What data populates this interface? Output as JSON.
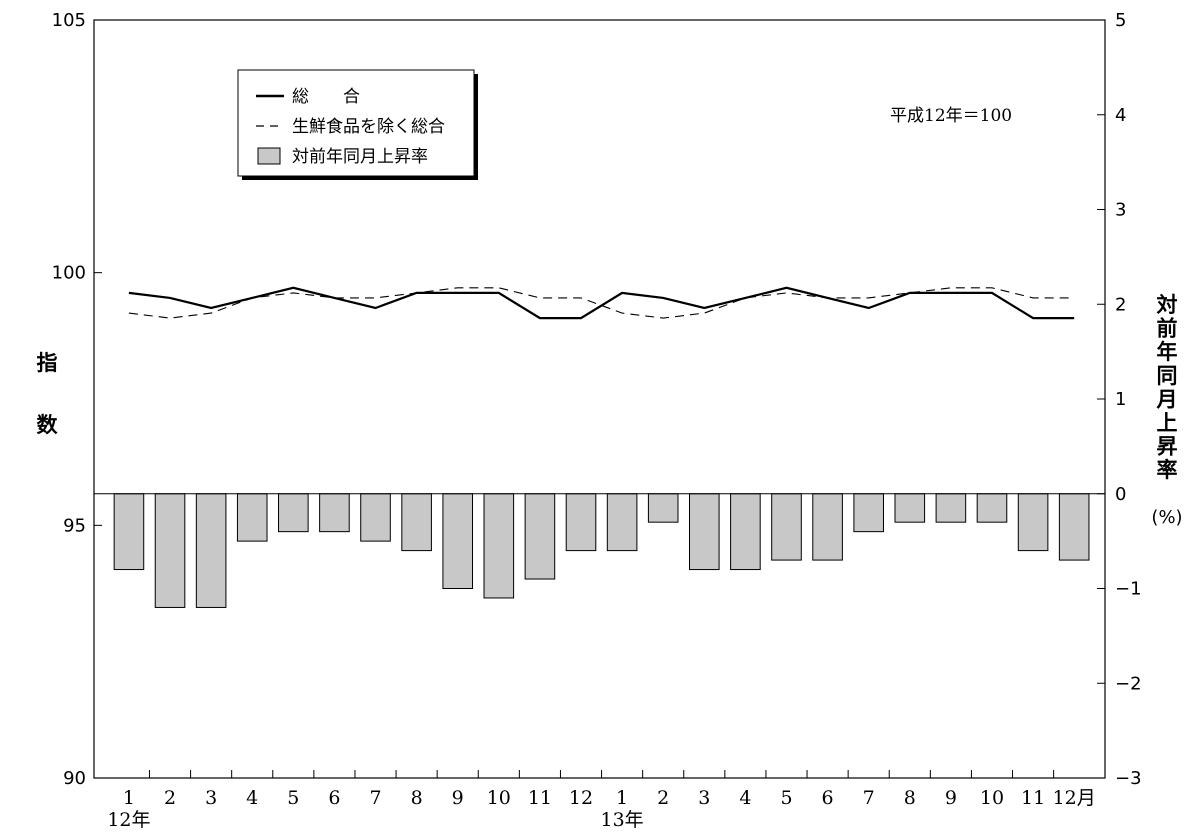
{
  "chart_data": {
    "type": "line+bar",
    "left_axis": {
      "label_chars": [
        "指",
        "数"
      ],
      "ylim": [
        90,
        105
      ],
      "ticks": [
        90,
        95,
        100,
        105
      ]
    },
    "right_axis": {
      "label_chars": [
        "対",
        "前",
        "年",
        "同",
        "月",
        "上",
        "昇",
        "率"
      ],
      "unit": "(%)",
      "ylim": [
        -3,
        5
      ],
      "ticks": [
        -3,
        -2,
        -1,
        0,
        1,
        2,
        3,
        4,
        5
      ],
      "tick_labels": [
        "−3",
        "−2",
        "−1",
        "0",
        "1",
        "2",
        "3",
        "4",
        "5"
      ]
    },
    "x_labels": [
      "1",
      "2",
      "3",
      "4",
      "5",
      "6",
      "7",
      "8",
      "9",
      "10",
      "11",
      "12",
      "1",
      "2",
      "3",
      "4",
      "5",
      "6",
      "7",
      "8",
      "9",
      "10",
      "11",
      "12月"
    ],
    "year_labels": [
      {
        "index": 0,
        "text": "12年"
      },
      {
        "index": 12,
        "text": "13年"
      }
    ],
    "series": [
      {
        "name": "総　　合",
        "style": "solid",
        "axis": "left",
        "values": [
          99.6,
          99.5,
          99.3,
          99.5,
          99.7,
          99.5,
          99.3,
          99.6,
          99.6,
          99.6,
          99.1,
          99.1,
          99.6,
          99.5,
          99.3,
          99.5,
          99.7,
          99.5,
          99.3,
          99.6,
          99.6,
          99.6,
          99.1,
          99.1
        ]
      },
      {
        "name": "生鮮食品を除く総合",
        "style": "dashed",
        "axis": "left",
        "values": [
          99.2,
          99.1,
          99.2,
          99.5,
          99.6,
          99.5,
          99.5,
          99.6,
          99.7,
          99.7,
          99.5,
          99.5,
          99.2,
          99.1,
          99.2,
          99.5,
          99.6,
          99.5,
          99.5,
          99.6,
          99.7,
          99.7,
          99.5,
          99.5
        ]
      },
      {
        "name": "対前年同月上昇率",
        "style": "bar",
        "axis": "right",
        "values": [
          -0.8,
          -1.2,
          -1.2,
          -0.5,
          -0.4,
          -0.4,
          -0.5,
          -0.6,
          -1.0,
          -1.1,
          -0.9,
          -0.6,
          -0.6,
          -0.3,
          -0.8,
          -0.8,
          -0.7,
          -0.7,
          -0.4,
          -0.3,
          -0.3,
          -0.3,
          -0.6,
          -0.7
        ]
      }
    ],
    "base_note": "平成12年＝100",
    "legend_position": "top-left",
    "colors": {
      "bar_fill": "#c8c8c8",
      "line": "#000000"
    }
  }
}
